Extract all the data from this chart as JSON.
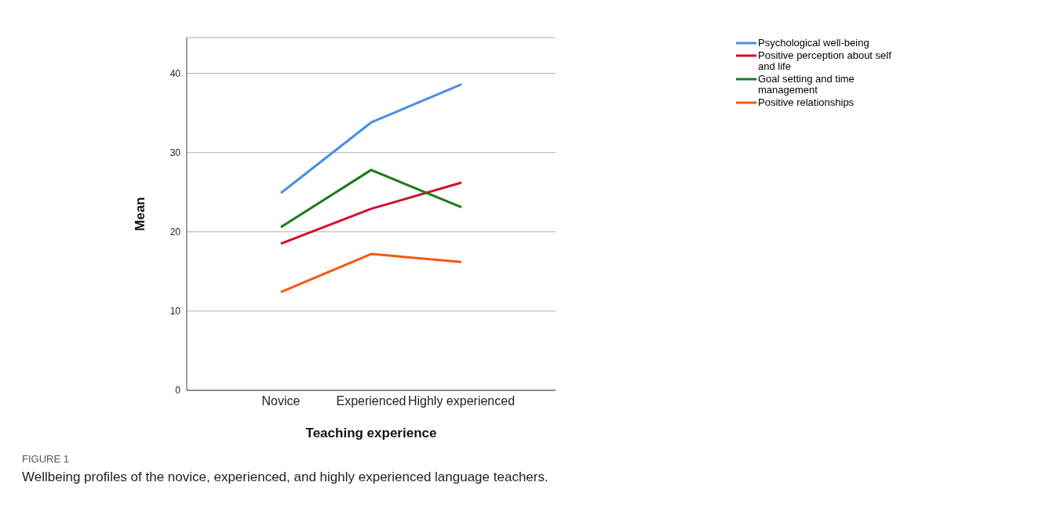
{
  "chart_data": {
    "type": "line",
    "xlabel": "Teaching experience",
    "ylabel": "Mean",
    "categories": [
      "Novice",
      "Experienced",
      "Highly experienced"
    ],
    "series": [
      {
        "name": "Psychological well-being",
        "color": "#4a8fe2",
        "values": [
          24.9,
          33.8,
          38.6
        ]
      },
      {
        "name": "Positive perception about self and life",
        "color": "#d0102e",
        "values": [
          18.5,
          22.9,
          26.2
        ]
      },
      {
        "name": "Goal setting and time management",
        "color": "#1a7a1a",
        "values": [
          20.6,
          27.8,
          23.1
        ]
      },
      {
        "name": "Positive relationships",
        "color": "#f25a12",
        "values": [
          12.4,
          17.2,
          16.2
        ]
      }
    ],
    "ylim": [
      0,
      44.5
    ],
    "yticks": [
      0,
      10,
      20,
      30,
      40
    ],
    "grid": "y",
    "legend": "top right",
    "marker": "none",
    "line_style": "solid",
    "annotations": [
      "FIGURE 1",
      "Wellbeing profiles of the novice, experienced, and highly experienced language teachers."
    ]
  }
}
